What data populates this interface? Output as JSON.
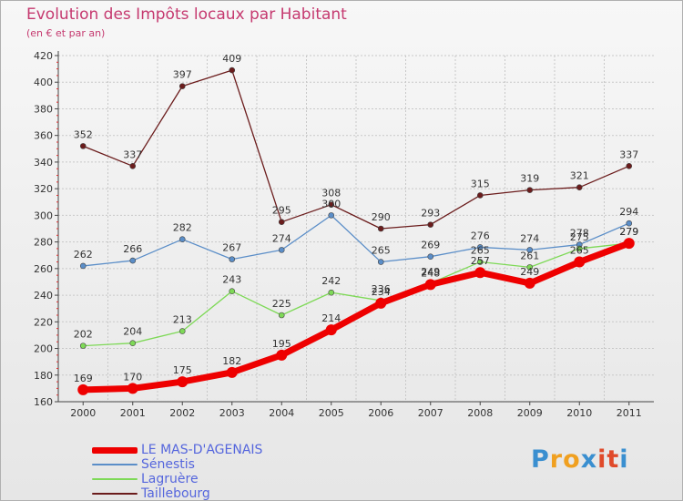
{
  "chart_data": {
    "type": "line",
    "title": "Evolution des Impôts locaux par Habitant",
    "subtitle": "(en € et par an)",
    "categories": [
      "2000",
      "2001",
      "2002",
      "2003",
      "2004",
      "2005",
      "2006",
      "2007",
      "2008",
      "2009",
      "2010",
      "2011"
    ],
    "ylim": [
      160,
      420
    ],
    "yticks": [
      160,
      180,
      200,
      220,
      240,
      260,
      280,
      300,
      320,
      340,
      360,
      380,
      400,
      420
    ],
    "series": [
      {
        "name": "Taillebourg",
        "color": "#6b1c1c",
        "values": [
          352,
          337,
          397,
          409,
          295,
          308,
          290,
          293,
          315,
          319,
          321,
          337
        ]
      },
      {
        "name": "Sénestis",
        "color": "#5b8ec8",
        "values": [
          262,
          266,
          282,
          267,
          274,
          300,
          265,
          269,
          276,
          274,
          278,
          294
        ]
      },
      {
        "name": "Lagruère",
        "color": "#7ed957",
        "values": [
          202,
          204,
          213,
          243,
          225,
          242,
          236,
          249,
          265,
          261,
          275,
          279
        ]
      },
      {
        "name": "LE MAS-D'AGENAIS",
        "color": "#ee0000",
        "values": [
          169,
          170,
          175,
          182,
          195,
          214,
          234,
          248,
          257,
          249,
          265,
          279
        ]
      }
    ],
    "legend": [
      "LE MAS-D'AGENAIS",
      "Sénestis",
      "Lagruère",
      "Taillebourg"
    ]
  },
  "logo": {
    "letters": [
      {
        "char": "P",
        "color": "#3a8fd0"
      },
      {
        "char": "r",
        "color": "#f0a020"
      },
      {
        "char": "o",
        "color": "#f0a020"
      },
      {
        "char": "x",
        "color": "#3a8fd0"
      },
      {
        "char": "i",
        "color": "#e04a2a"
      },
      {
        "char": "t",
        "color": "#e04a2a"
      },
      {
        "char": "i",
        "color": "#3a8fd0"
      }
    ]
  }
}
